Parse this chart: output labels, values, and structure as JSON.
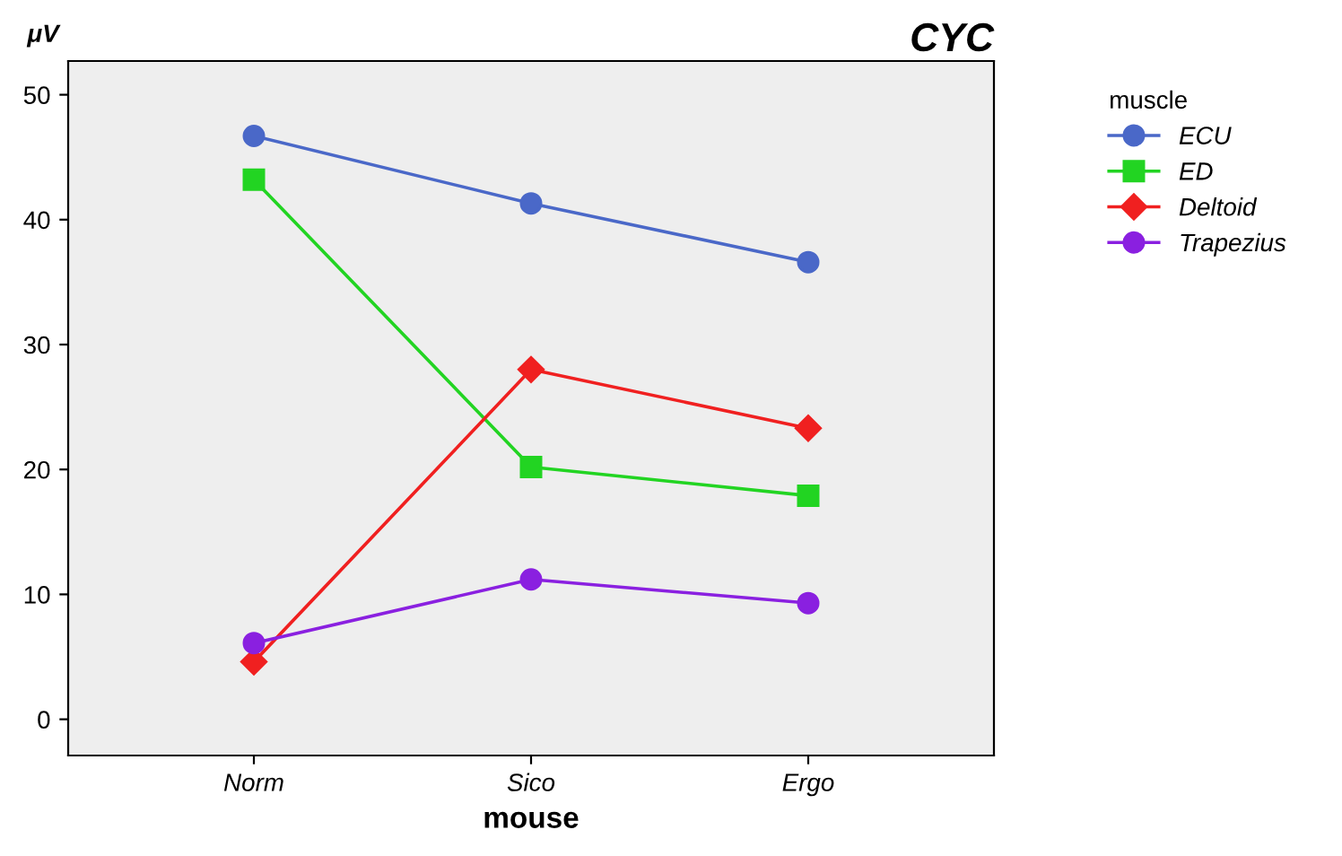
{
  "chart_data": {
    "type": "line",
    "title": "CYC",
    "xlabel": "mouse",
    "ylabel": "μV",
    "legend_title": "muscle",
    "categories": [
      "Norm",
      "Sico",
      "Ergo"
    ],
    "series": [
      {
        "name": "ECU",
        "color": "#4a68c8",
        "marker": "circle",
        "values": [
          46.7,
          41.3,
          36.6
        ]
      },
      {
        "name": "ED",
        "color": "#22d422",
        "marker": "square",
        "values": [
          43.2,
          20.2,
          17.9
        ]
      },
      {
        "name": "Deltoid",
        "color": "#f02020",
        "marker": "diamond",
        "values": [
          4.6,
          28.0,
          23.3
        ]
      },
      {
        "name": "Trapezius",
        "color": "#8a20e0",
        "marker": "circle",
        "values": [
          6.1,
          11.2,
          9.3
        ]
      }
    ],
    "ylim": [
      -2.9,
      52.7
    ],
    "yticks": [
      0,
      10,
      20,
      30,
      40,
      50
    ],
    "grid": false,
    "legend": "right",
    "line_style": "solid"
  }
}
